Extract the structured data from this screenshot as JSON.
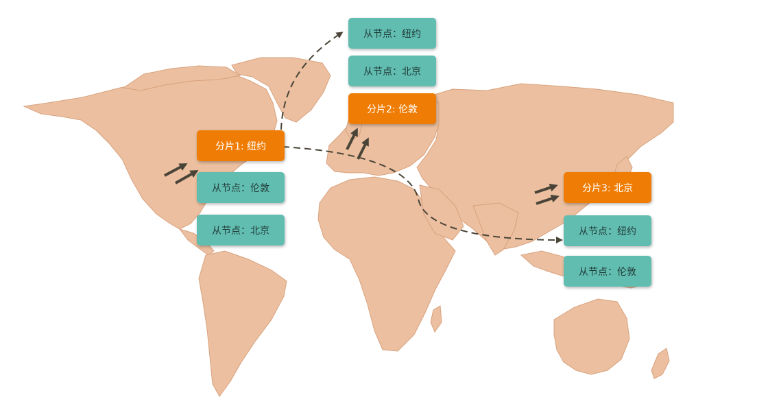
{
  "colors": {
    "land": "#ebbf9f",
    "land_border": "#d9a27e",
    "primary": "#ef7d05",
    "replica": "#62bdb1",
    "arrow": "#4a4438"
  },
  "shards": [
    {
      "label": "分片1: 纽约"
    },
    {
      "label": "分片2: 伦敦"
    },
    {
      "label": "分片3: 北京"
    }
  ],
  "replicas": {
    "shard1": [
      "从节点：伦敦",
      "从节点：北京"
    ],
    "shard2": [
      "从节点：纽约",
      "从节点：北京"
    ],
    "shard3": [
      "从节点：纽约",
      "从节点：伦敦"
    ]
  }
}
